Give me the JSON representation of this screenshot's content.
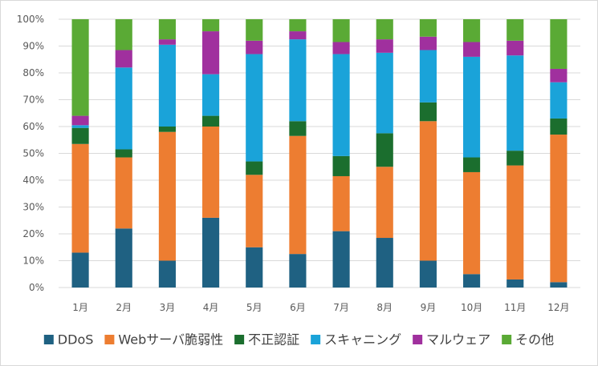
{
  "chart_data": {
    "type": "bar",
    "stacked": "percent",
    "categories": [
      "1月",
      "2月",
      "3月",
      "4月",
      "5月",
      "6月",
      "7月",
      "8月",
      "9月",
      "10月",
      "11月",
      "12月"
    ],
    "y_ticks": [
      "0%",
      "10%",
      "20%",
      "30%",
      "40%",
      "50%",
      "60%",
      "70%",
      "80%",
      "90%",
      "100%"
    ],
    "ylim": [
      0,
      100
    ],
    "grid": true,
    "legend_position": "bottom",
    "series": [
      {
        "name": "DDoS",
        "color": "#1f6182",
        "values": [
          13,
          22,
          10,
          26,
          15,
          12.5,
          21,
          18.5,
          10,
          5,
          3,
          2
        ]
      },
      {
        "name": "Webサーバ脆弱性",
        "color": "#ed7d31",
        "values": [
          40.5,
          26.5,
          48,
          34,
          27,
          44,
          20.5,
          26.5,
          52,
          38,
          42.5,
          55
        ]
      },
      {
        "name": "不正認証",
        "color": "#1b6e2e",
        "values": [
          6,
          3,
          2,
          4,
          5,
          5.5,
          7.5,
          12.5,
          7,
          5.5,
          5.5,
          6
        ]
      },
      {
        "name": "スキャニング",
        "color": "#1aa3d9",
        "values": [
          1,
          30.5,
          30.5,
          15.5,
          40,
          30.5,
          38,
          30,
          19.5,
          37.5,
          35.5,
          13.5
        ]
      },
      {
        "name": "マルウェア",
        "color": "#a0309e",
        "values": [
          3.5,
          6.5,
          2,
          16,
          5,
          3,
          4.5,
          5,
          5,
          5.5,
          5.5,
          5
        ]
      },
      {
        "name": "その他",
        "color": "#5aaa35",
        "values": [
          36,
          11.5,
          7.5,
          4.5,
          8,
          4.5,
          8.5,
          7.5,
          6.5,
          8.5,
          8,
          18.5
        ]
      }
    ]
  }
}
